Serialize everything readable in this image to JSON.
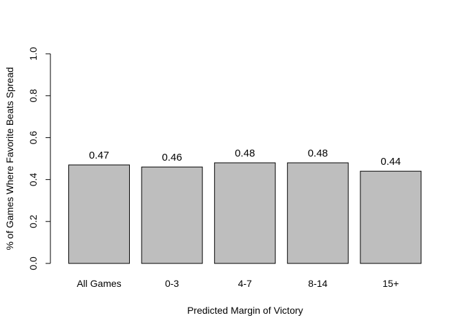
{
  "chart_data": {
    "type": "bar",
    "categories": [
      "All Games",
      "0-3",
      "4-7",
      "8-14",
      "15+"
    ],
    "values": [
      0.47,
      0.46,
      0.48,
      0.48,
      0.44
    ],
    "data_labels": [
      "0.47",
      "0.46",
      "0.48",
      "0.48",
      "0.44"
    ],
    "title": "",
    "xlabel": "Predicted Margin of Victory",
    "ylabel": "% of Games Where Favorite Beats Spread",
    "ylim": [
      0,
      1
    ],
    "yticks": [
      0,
      0.2,
      0.4,
      0.6,
      0.8,
      1
    ],
    "ytick_labels": [
      "0.0",
      "0.2",
      "0.4",
      "0.6",
      "0.8",
      "1.0"
    ],
    "grid": false,
    "legend": "none",
    "bar_color": "#bebebe",
    "bar_border_color": "#000000"
  }
}
